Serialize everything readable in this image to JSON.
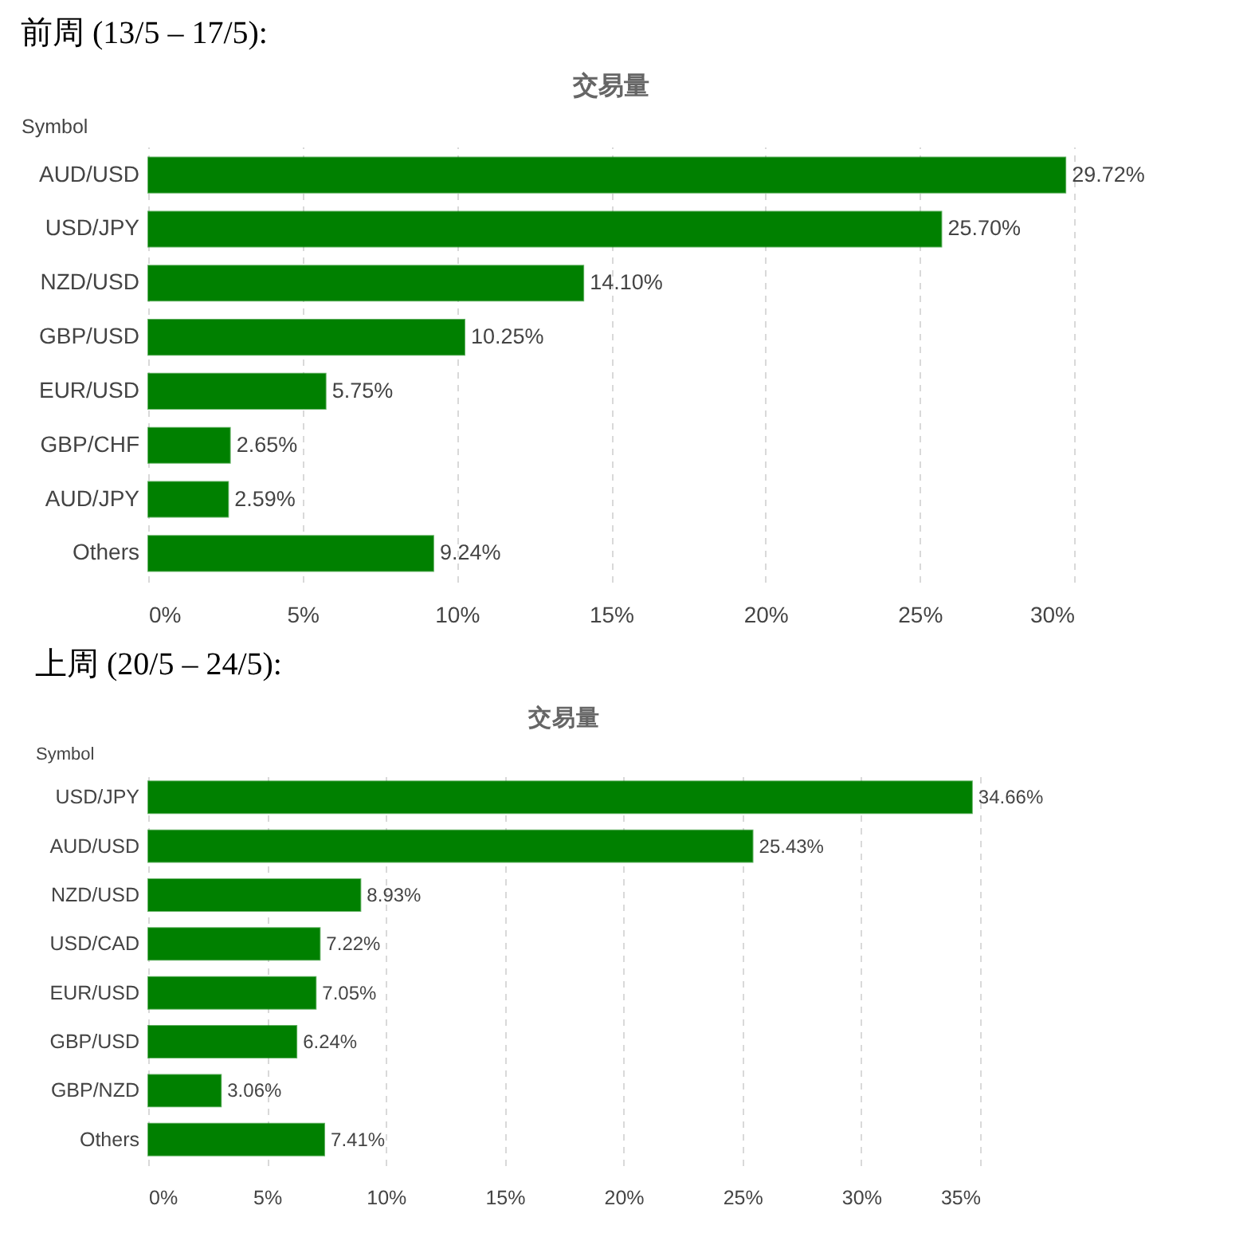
{
  "chart_data": [
    {
      "type": "bar",
      "orientation": "horizontal",
      "title": "前周 (13/5 – 17/5):",
      "subtitle": "交易量",
      "ylabel": "Symbol",
      "categories": [
        "AUD/USD",
        "USD/JPY",
        "NZD/USD",
        "GBP/USD",
        "EUR/USD",
        "GBP/CHF",
        "AUD/JPY",
        "Others"
      ],
      "values": [
        29.72,
        25.7,
        14.1,
        10.25,
        5.75,
        2.65,
        2.59,
        9.24
      ],
      "value_labels": [
        "29.72%",
        "25.70%",
        "14.10%",
        "10.25%",
        "5.75%",
        "2.65%",
        "2.59%",
        "9.24%"
      ],
      "color": "#008000",
      "xlim": [
        0,
        30
      ],
      "xticks": [
        {
          "value": 0,
          "label": "0%"
        },
        {
          "value": 5,
          "label": "5%"
        },
        {
          "value": 10,
          "label": "10%"
        },
        {
          "value": 15,
          "label": "15%"
        },
        {
          "value": 20,
          "label": "20%"
        },
        {
          "value": 25,
          "label": "25%"
        },
        {
          "value": 30,
          "label": "30%"
        }
      ],
      "grid": "x"
    },
    {
      "type": "bar",
      "orientation": "horizontal",
      "title": "上周 (20/5 – 24/5):",
      "subtitle": "交易量",
      "ylabel": "Symbol",
      "categories": [
        "USD/JPY",
        "AUD/USD",
        "NZD/USD",
        "USD/CAD",
        "EUR/USD",
        "GBP/USD",
        "GBP/NZD",
        "Others"
      ],
      "values": [
        34.66,
        25.43,
        8.93,
        7.22,
        7.05,
        6.24,
        3.06,
        7.41
      ],
      "value_labels": [
        "34.66%",
        "25.43%",
        "8.93%",
        "7.22%",
        "7.05%",
        "6.24%",
        "3.06%",
        "7.41%"
      ],
      "color": "#008000",
      "xlim": [
        0,
        35
      ],
      "xticks": [
        {
          "value": 0,
          "label": "0%"
        },
        {
          "value": 5,
          "label": "5%"
        },
        {
          "value": 10,
          "label": "10%"
        },
        {
          "value": 15,
          "label": "15%"
        },
        {
          "value": 20,
          "label": "20%"
        },
        {
          "value": 25,
          "label": "25%"
        },
        {
          "value": 30,
          "label": "30%"
        },
        {
          "value": 35,
          "label": "35%"
        }
      ],
      "grid": "x"
    }
  ]
}
